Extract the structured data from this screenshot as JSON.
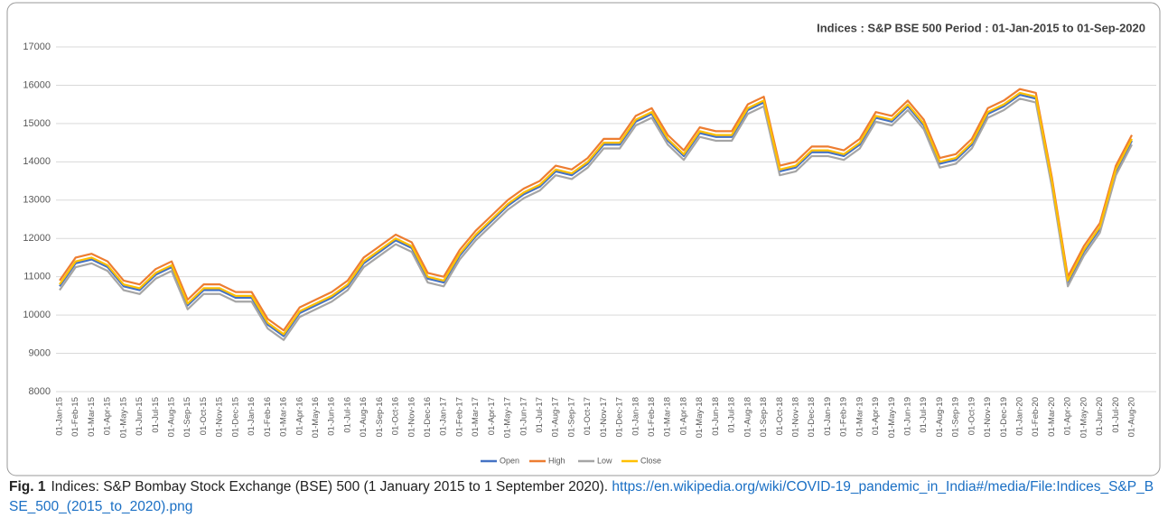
{
  "chart_data": {
    "type": "line",
    "title": "Indices : S&P BSE 500  Period : 01-Jan-2015 to 01-Sep-2020",
    "categories": [
      "01-Jan-15",
      "01-Feb-15",
      "01-Mar-15",
      "01-Apr-15",
      "01-May-15",
      "01-Jun-15",
      "01-Jul-15",
      "01-Aug-15",
      "01-Sep-15",
      "01-Oct-15",
      "01-Nov-15",
      "01-Dec-15",
      "01-Jan-16",
      "01-Feb-16",
      "01-Mar-16",
      "01-Apr-16",
      "01-May-16",
      "01-Jun-16",
      "01-Jul-16",
      "01-Aug-16",
      "01-Sep-16",
      "01-Oct-16",
      "01-Nov-16",
      "01-Dec-16",
      "01-Jan-17",
      "01-Feb-17",
      "01-Mar-17",
      "01-Apr-17",
      "01-May-17",
      "01-Jun-17",
      "01-Jul-17",
      "01-Aug-17",
      "01-Sep-17",
      "01-Oct-17",
      "01-Nov-17",
      "01-Dec-17",
      "01-Jan-18",
      "01-Feb-18",
      "01-Mar-18",
      "01-Apr-18",
      "01-May-18",
      "01-Jun-18",
      "01-Jul-18",
      "01-Aug-18",
      "01-Sep-18",
      "01-Oct-18",
      "01-Nov-18",
      "01-Dec-18",
      "01-Jan-19",
      "01-Feb-19",
      "01-Mar-19",
      "01-Apr-19",
      "01-May-19",
      "01-Jun-19",
      "01-Jul-19",
      "01-Aug-19",
      "01-Sep-19",
      "01-Oct-19",
      "01-Nov-19",
      "01-Dec-19",
      "01-Jan-20",
      "01-Feb-20",
      "01-Mar-20",
      "01-Apr-20",
      "01-May-20",
      "01-Jun-20",
      "01-Jul-20",
      "01-Aug-20"
    ],
    "series": [
      {
        "name": "Open",
        "color": "#4472c4",
        "values": [
          10750,
          11350,
          11450,
          11250,
          10750,
          10650,
          11050,
          11250,
          10250,
          10650,
          10650,
          10450,
          10450,
          9750,
          9450,
          10050,
          10250,
          10450,
          10750,
          11350,
          11650,
          11950,
          11750,
          10950,
          10850,
          11550,
          12050,
          12450,
          12850,
          13150,
          13350,
          13750,
          13650,
          13950,
          14450,
          14450,
          15050,
          15250,
          14550,
          14150,
          14750,
          14650,
          14650,
          15350,
          15550,
          13750,
          13850,
          14250,
          14250,
          14150,
          14450,
          15150,
          15050,
          15450,
          14950,
          13950,
          14050,
          14450,
          15250,
          15450,
          15750,
          15650,
          13450,
          10850,
          11650,
          12250,
          13750,
          14550
        ]
      },
      {
        "name": "High",
        "color": "#ed7d31",
        "values": [
          10900,
          11500,
          11600,
          11400,
          10900,
          10800,
          11200,
          11400,
          10400,
          10800,
          10800,
          10600,
          10600,
          9900,
          9600,
          10200,
          10400,
          10600,
          10900,
          11500,
          11800,
          12100,
          11900,
          11100,
          11000,
          11700,
          12200,
          12600,
          13000,
          13300,
          13500,
          13900,
          13800,
          14100,
          14600,
          14600,
          15200,
          15400,
          14700,
          14300,
          14900,
          14800,
          14800,
          15500,
          15700,
          13900,
          14000,
          14400,
          14400,
          14300,
          14600,
          15300,
          15200,
          15600,
          15100,
          14100,
          14200,
          14600,
          15400,
          15600,
          15900,
          15800,
          13600,
          11000,
          11800,
          12400,
          13900,
          14700
        ]
      },
      {
        "name": "Low",
        "color": "#a5a5a5",
        "values": [
          10650,
          11250,
          11350,
          11150,
          10650,
          10550,
          10950,
          11150,
          10150,
          10550,
          10550,
          10350,
          10350,
          9650,
          9350,
          9950,
          10150,
          10350,
          10650,
          11250,
          11550,
          11850,
          11650,
          10850,
          10750,
          11450,
          11950,
          12350,
          12750,
          13050,
          13250,
          13650,
          13550,
          13850,
          14350,
          14350,
          14950,
          15150,
          14450,
          14050,
          14650,
          14550,
          14550,
          15250,
          15450,
          13650,
          13750,
          14150,
          14150,
          14050,
          14350,
          15050,
          14950,
          15350,
          14850,
          13850,
          13950,
          14350,
          15150,
          15350,
          15650,
          15550,
          13350,
          10750,
          11550,
          12150,
          13650,
          14450
        ]
      },
      {
        "name": "Close",
        "color": "#ffc000",
        "values": [
          10800,
          11400,
          11500,
          11300,
          10800,
          10700,
          11100,
          11300,
          10300,
          10700,
          10700,
          10500,
          10500,
          9800,
          9500,
          10100,
          10300,
          10500,
          10800,
          11400,
          11700,
          12000,
          11800,
          11000,
          10900,
          11600,
          12100,
          12500,
          12900,
          13200,
          13400,
          13800,
          13700,
          14000,
          14500,
          14500,
          15100,
          15300,
          14600,
          14200,
          14800,
          14700,
          14700,
          15400,
          15600,
          13800,
          13900,
          14300,
          14300,
          14200,
          14500,
          15200,
          15100,
          15500,
          15000,
          14000,
          14100,
          14500,
          15300,
          15500,
          15800,
          15700,
          13500,
          10900,
          11700,
          12300,
          13800,
          14600
        ]
      }
    ],
    "ylim": [
      8000,
      17000
    ],
    "yticks": [
      8000,
      9000,
      10000,
      11000,
      12000,
      13000,
      14000,
      15000,
      16000,
      17000
    ],
    "grid": true,
    "legend": "bottom"
  },
  "caption": {
    "label": "Fig. 1",
    "text": "Indices: S&P Bombay Stock Exchange (BSE) 500 (1 January 2015 to 1 September 2020).",
    "link": "https://en.wikipedia.org/wiki/COVID-19_pandemic_in_India#/media/File:Indices_S&P_BSE_500_(2015_to_2020).png"
  }
}
